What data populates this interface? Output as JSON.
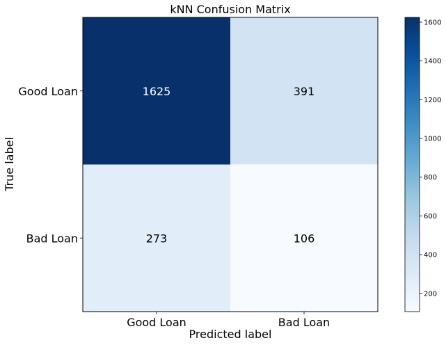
{
  "chart_data": {
    "type": "heatmap",
    "title": "kNN Confusion Matrix",
    "xlabel": "Predicted label",
    "ylabel": "True label",
    "x_categories": [
      "Good Loan",
      "Bad Loan"
    ],
    "y_categories": [
      "Good Loan",
      "Bad Loan"
    ],
    "values": [
      [
        1625,
        391
      ],
      [
        273,
        106
      ]
    ],
    "colormap": "Blues",
    "colormap_stops": [
      "#f7fbff",
      "#deebf7",
      "#c6dbef",
      "#9ecae1",
      "#6baed6",
      "#4292c6",
      "#2171b5",
      "#08519c",
      "#08306b"
    ],
    "color_range": [
      106,
      1625
    ],
    "colorbar_ticks": [
      "200",
      "400",
      "600",
      "800",
      "1000",
      "1200",
      "1400",
      "1600"
    ],
    "grid": false
  }
}
